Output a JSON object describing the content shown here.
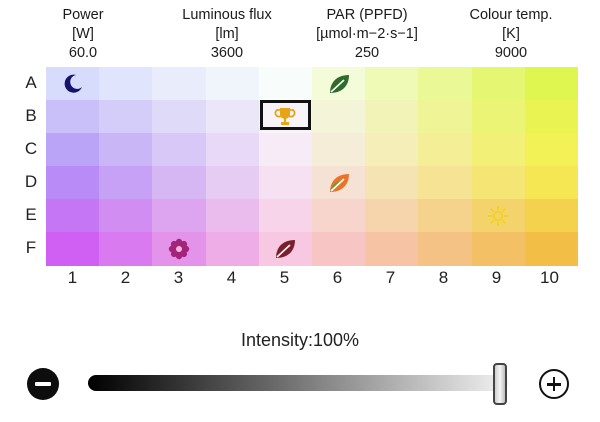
{
  "headers": {
    "power": {
      "name": "Power",
      "unit": "[W]",
      "value": "60.0"
    },
    "luminous_flux": {
      "name": "Luminous flux",
      "unit": "[lm]",
      "value": "3600"
    },
    "par": {
      "name": "PAR (PPFD)",
      "unit": "[µmol·m−2·s−1]",
      "value": "250"
    },
    "colour_temp": {
      "name": "Colour temp.",
      "unit": "[K]",
      "value": "9000"
    }
  },
  "rows": [
    "A",
    "B",
    "C",
    "D",
    "E",
    "F"
  ],
  "columns": [
    "1",
    "2",
    "3",
    "4",
    "5",
    "6",
    "7",
    "8",
    "9",
    "10"
  ],
  "cells": [
    {
      "row": "A",
      "col": "1",
      "icon": "moon-icon",
      "color": "#14146e"
    },
    {
      "row": "A",
      "col": "6",
      "icon": "leaf-icon",
      "color": "#2f6b2a"
    },
    {
      "row": "B",
      "col": "5",
      "icon": "trophy-icon",
      "color": "#e8a317",
      "selected": true
    },
    {
      "row": "D",
      "col": "6",
      "icon": "leaf-orange-icon",
      "color": "#e8742a"
    },
    {
      "row": "E",
      "col": "9",
      "icon": "sun-outline-icon",
      "color": "#f2d21a"
    },
    {
      "row": "F",
      "col": "3",
      "icon": "sun-flower-icon",
      "color": "#a3247a"
    },
    {
      "row": "F",
      "col": "5",
      "icon": "leaf-dark-red-icon",
      "color": "#7a1f2e"
    }
  ],
  "intensity": {
    "label": "Intensity:",
    "value": "100%",
    "level": 1.0
  },
  "colors": {
    "selection_border": "#111111"
  }
}
